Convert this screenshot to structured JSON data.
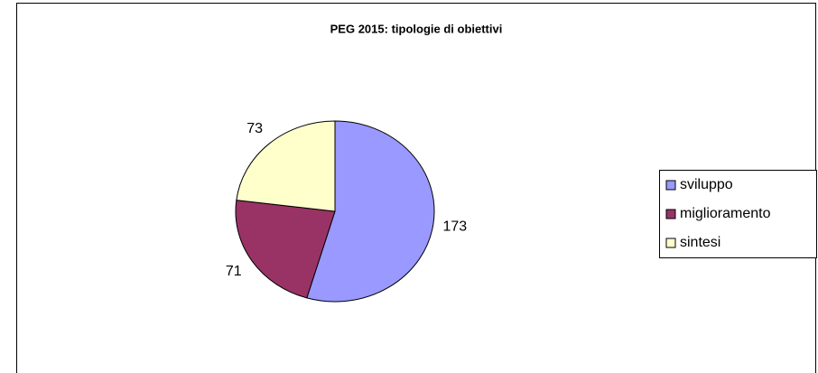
{
  "chart_data": {
    "type": "pie",
    "title": "PEG 2015: tipologie di obiettivi",
    "categories": [
      "sviluppo",
      "miglioramento",
      "sintesi"
    ],
    "values": [
      173,
      71,
      73
    ],
    "colors": [
      "#9999ff",
      "#993366",
      "#ffffcc"
    ],
    "legend": "right"
  }
}
